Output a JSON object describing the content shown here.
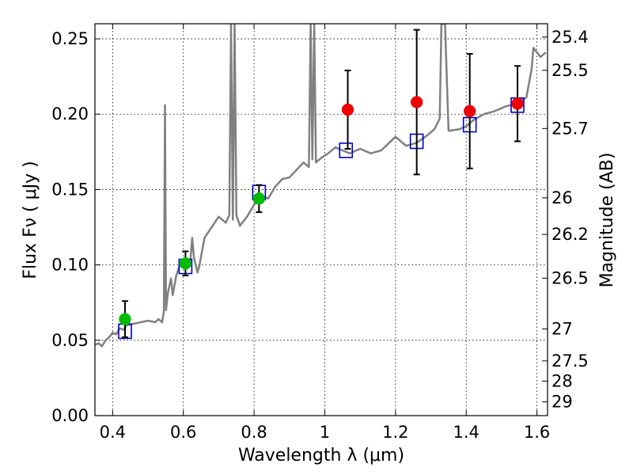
{
  "chart_data": {
    "type": "scatter",
    "title": "",
    "xlabel": "Wavelength  λ (μm)",
    "ylabel": "Flux  Fν  ( μJy )",
    "ylabel_right": "Magnitude (AB)",
    "xlim": [
      0.35,
      1.63
    ],
    "ylim": [
      0.0,
      0.26
    ],
    "grid": true,
    "x_ticks": [
      {
        "value": 0.4,
        "label": "0.4"
      },
      {
        "value": 0.6,
        "label": "0.6"
      },
      {
        "value": 0.8,
        "label": "0.8"
      },
      {
        "value": 1.0,
        "label": "1"
      },
      {
        "value": 1.2,
        "label": "1.2"
      },
      {
        "value": 1.4,
        "label": "1.4"
      },
      {
        "value": 1.6,
        "label": "1.6"
      }
    ],
    "y_ticks": [
      {
        "value": 0.0,
        "label": "0.00"
      },
      {
        "value": 0.05,
        "label": "0.05"
      },
      {
        "value": 0.1,
        "label": "0.10"
      },
      {
        "value": 0.15,
        "label": "0.15"
      },
      {
        "value": 0.2,
        "label": "0.20"
      },
      {
        "value": 0.25,
        "label": "0.25"
      }
    ],
    "mag_ticks": [
      {
        "label": "25.4",
        "flux": 0.2512
      },
      {
        "label": "25.5",
        "flux": 0.2291
      },
      {
        "label": "25.7",
        "flux": 0.1905
      },
      {
        "label": "26",
        "flux": 0.1445
      },
      {
        "label": "26.2",
        "flux": 0.1202
      },
      {
        "label": "26.5",
        "flux": 0.0912
      },
      {
        "label": "27",
        "flux": 0.0575
      },
      {
        "label": "27.5",
        "flux": 0.0363
      },
      {
        "label": "28",
        "flux": 0.0229
      },
      {
        "label": "29",
        "flux": 0.0091
      }
    ],
    "series": [
      {
        "name": "model-sed",
        "kind": "line",
        "color": "#808080",
        "points": [
          [
            0.35,
            0.047
          ],
          [
            0.36,
            0.048
          ],
          [
            0.37,
            0.046
          ],
          [
            0.38,
            0.05
          ],
          [
            0.39,
            0.052
          ],
          [
            0.4,
            0.055
          ],
          [
            0.41,
            0.054
          ],
          [
            0.42,
            0.058
          ],
          [
            0.43,
            0.057
          ],
          [
            0.44,
            0.06
          ],
          [
            0.46,
            0.061
          ],
          [
            0.48,
            0.062
          ],
          [
            0.5,
            0.063
          ],
          [
            0.52,
            0.062
          ],
          [
            0.53,
            0.064
          ],
          [
            0.54,
            0.062
          ],
          [
            0.545,
            0.069
          ],
          [
            0.548,
            0.206
          ],
          [
            0.551,
            0.07
          ],
          [
            0.556,
            0.081
          ],
          [
            0.565,
            0.091
          ],
          [
            0.57,
            0.08
          ],
          [
            0.58,
            0.093
          ],
          [
            0.59,
            0.1
          ],
          [
            0.6,
            0.101
          ],
          [
            0.61,
            0.099
          ],
          [
            0.62,
            0.104
          ],
          [
            0.625,
            0.118
          ],
          [
            0.63,
            0.105
          ],
          [
            0.64,
            0.095
          ],
          [
            0.645,
            0.099
          ],
          [
            0.66,
            0.118
          ],
          [
            0.68,
            0.125
          ],
          [
            0.7,
            0.132
          ],
          [
            0.72,
            0.128
          ],
          [
            0.73,
            0.133
          ],
          [
            0.735,
            0.26
          ],
          [
            0.74,
            0.13
          ],
          [
            0.745,
            0.26
          ],
          [
            0.75,
            0.133
          ],
          [
            0.76,
            0.126
          ],
          [
            0.78,
            0.132
          ],
          [
            0.8,
            0.14
          ],
          [
            0.81,
            0.142
          ],
          [
            0.82,
            0.146
          ],
          [
            0.84,
            0.144
          ],
          [
            0.86,
            0.152
          ],
          [
            0.88,
            0.157
          ],
          [
            0.9,
            0.158
          ],
          [
            0.92,
            0.163
          ],
          [
            0.94,
            0.168
          ],
          [
            0.955,
            0.165
          ],
          [
            0.96,
            0.26
          ],
          [
            0.965,
            0.17
          ],
          [
            0.97,
            0.26
          ],
          [
            0.975,
            0.168
          ],
          [
            0.99,
            0.171
          ],
          [
            1.01,
            0.174
          ],
          [
            1.03,
            0.178
          ],
          [
            1.05,
            0.176
          ],
          [
            1.07,
            0.174
          ],
          [
            1.1,
            0.177
          ],
          [
            1.13,
            0.174
          ],
          [
            1.16,
            0.176
          ],
          [
            1.2,
            0.185
          ],
          [
            1.23,
            0.179
          ],
          [
            1.26,
            0.181
          ],
          [
            1.29,
            0.186
          ],
          [
            1.31,
            0.19
          ],
          [
            1.325,
            0.197
          ],
          [
            1.33,
            0.26
          ],
          [
            1.34,
            0.26
          ],
          [
            1.35,
            0.189
          ],
          [
            1.38,
            0.19
          ],
          [
            1.4,
            0.192
          ],
          [
            1.42,
            0.196
          ],
          [
            1.45,
            0.2
          ],
          [
            1.48,
            0.202
          ],
          [
            1.51,
            0.205
          ],
          [
            1.54,
            0.207
          ],
          [
            1.57,
            0.211
          ],
          [
            1.585,
            0.23
          ],
          [
            1.59,
            0.244
          ],
          [
            1.6,
            0.241
          ],
          [
            1.61,
            0.238
          ],
          [
            1.625,
            0.241
          ]
        ]
      },
      {
        "name": "model-photometry",
        "kind": "open-square",
        "color": "#0000cc",
        "points": [
          [
            0.435,
            0.056
          ],
          [
            0.606,
            0.099
          ],
          [
            0.814,
            0.148
          ],
          [
            1.06,
            0.176
          ],
          [
            1.26,
            0.182
          ],
          [
            1.41,
            0.193
          ],
          [
            1.545,
            0.206
          ]
        ]
      },
      {
        "name": "observed-green",
        "kind": "filled-circle",
        "color": "#00bb00",
        "points": [
          {
            "x": 0.435,
            "y": 0.064,
            "err": 0.012
          },
          {
            "x": 0.606,
            "y": 0.101,
            "err": 0.008
          },
          {
            "x": 0.814,
            "y": 0.144,
            "err": 0.009
          }
        ]
      },
      {
        "name": "observed-red",
        "kind": "filled-circle",
        "color": "#ee0000",
        "points": [
          {
            "x": 1.065,
            "y": 0.203,
            "err": 0.026
          },
          {
            "x": 1.26,
            "y": 0.208,
            "err": 0.048
          },
          {
            "x": 1.41,
            "y": 0.202,
            "err": 0.038
          },
          {
            "x": 1.545,
            "y": 0.207,
            "err": 0.025
          }
        ]
      }
    ]
  }
}
